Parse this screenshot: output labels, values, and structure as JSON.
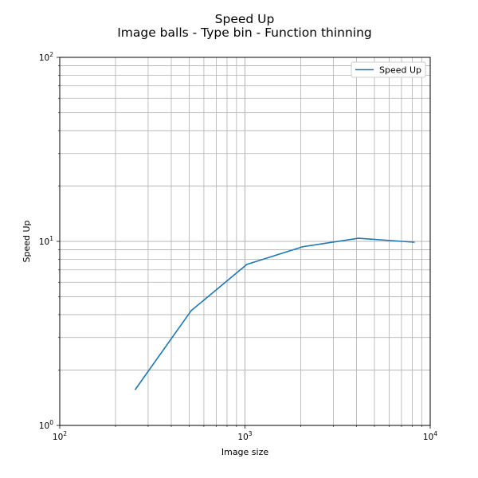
{
  "chart_data": {
    "type": "line",
    "title": "Speed Up",
    "subtitle": "Image balls - Type bin - Function thinning",
    "xlabel": "Image size",
    "ylabel": "Speed Up",
    "xscale": "log",
    "yscale": "log",
    "xlim": [
      100,
      10000
    ],
    "ylim": [
      1,
      100
    ],
    "xticks": [
      {
        "base": "10",
        "exp": "2",
        "value": 100
      },
      {
        "base": "10",
        "exp": "3",
        "value": 1000
      },
      {
        "base": "10",
        "exp": "4",
        "value": 10000
      }
    ],
    "yticks": [
      {
        "base": "10",
        "exp": "0",
        "value": 1
      },
      {
        "base": "10",
        "exp": "1",
        "value": 10
      },
      {
        "base": "10",
        "exp": "2",
        "value": 100
      }
    ],
    "grid": true,
    "grid_color": "#b0b0b0",
    "legend_position": "top-right",
    "series": [
      {
        "name": "Speed Up",
        "color": "#1f77b4",
        "x": [
          256,
          512,
          1024,
          2048,
          4096,
          8192
        ],
        "y": [
          1.57,
          4.2,
          7.5,
          9.35,
          10.4,
          9.9
        ]
      }
    ]
  }
}
